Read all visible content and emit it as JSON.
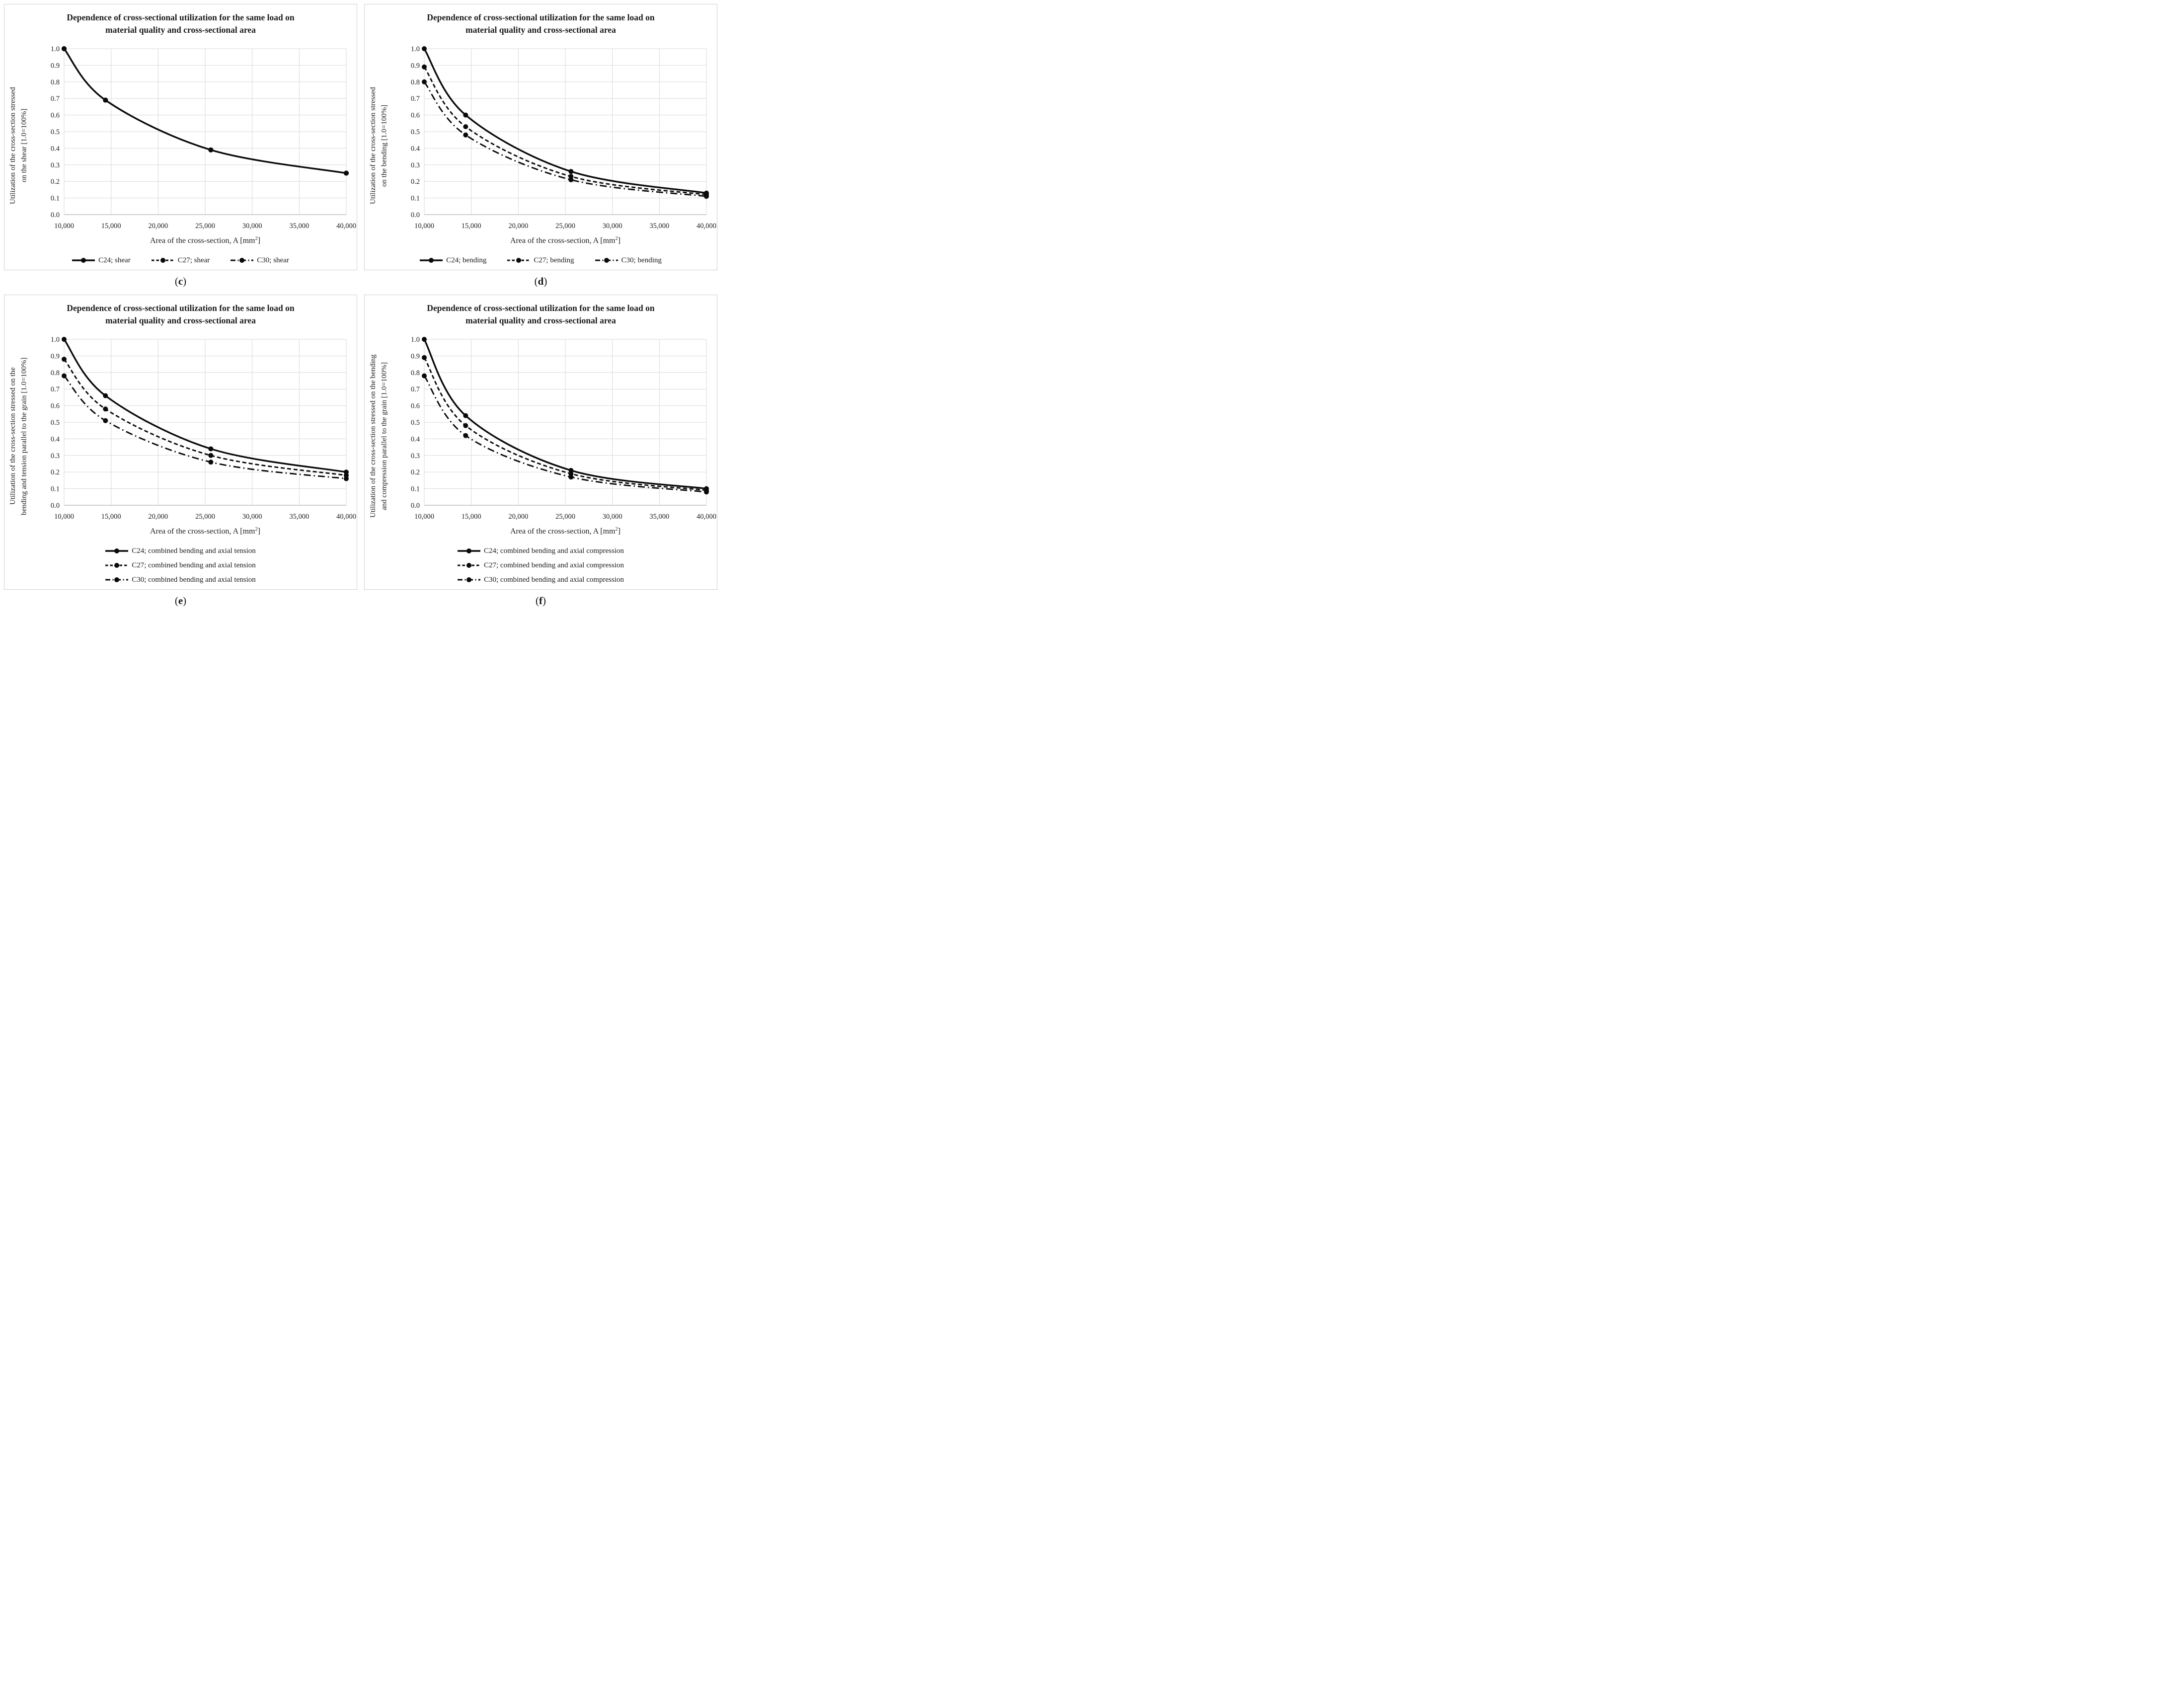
{
  "page": {
    "background": "#ffffff",
    "text_color": "#1a1a1a",
    "grid_color": "#d9d9d9",
    "line_color": "#0a0a0a"
  },
  "charts": [
    {
      "caption_letter": "c",
      "title_line1": "Dependence of cross-sectional utilization for the same load on",
      "title_line2": "material quality and cross-sectional area",
      "ylabel_line1": "Utilization of the cross-section stressed",
      "ylabel_line2": "on the shear [1.0=100%]",
      "legend_layout": "row",
      "chart_data": {
        "type": "line",
        "x": [
          10000,
          14400,
          25600,
          40000
        ],
        "xlim": [
          10000,
          40000
        ],
        "ylim": [
          0,
          1
        ],
        "grid": true,
        "legend_position": "bottom",
        "xlabel": "Area of the cross-section, A [mm²]",
        "xticks": [
          "10,000",
          "15,000",
          "20,000",
          "25,000",
          "30,000",
          "35,000",
          "40,000"
        ],
        "yticks": [
          "0.0",
          "0.1",
          "0.2",
          "0.3",
          "0.4",
          "0.5",
          "0.6",
          "0.7",
          "0.8",
          "0.9",
          "1.0"
        ],
        "series": [
          {
            "name": "C24; shear",
            "style": "solid",
            "values": [
              1.0,
              0.69,
              0.39,
              0.25
            ]
          },
          {
            "name": "C27; shear",
            "style": "dashed",
            "values": [
              1.0,
              0.69,
              0.39,
              0.25
            ]
          },
          {
            "name": "C30; shear",
            "style": "dashdot",
            "values": [
              1.0,
              0.69,
              0.39,
              0.25
            ]
          }
        ]
      }
    },
    {
      "caption_letter": "d",
      "title_line1": "Dependence of cross-sectional utilization for the same load on",
      "title_line2": "material quality and cross-sectional area",
      "ylabel_line1": "Utilization of the cross-section stressed",
      "ylabel_line2": "on the bending [1.0=100%]",
      "legend_layout": "row",
      "chart_data": {
        "type": "line",
        "x": [
          10000,
          14400,
          25600,
          40000
        ],
        "xlim": [
          10000,
          40000
        ],
        "ylim": [
          0,
          1
        ],
        "grid": true,
        "legend_position": "bottom",
        "xlabel": "Area of the cross-section, A [mm²]",
        "xticks": [
          "10,000",
          "15,000",
          "20,000",
          "25,000",
          "30,000",
          "35,000",
          "40,000"
        ],
        "yticks": [
          "0.0",
          "0.1",
          "0.2",
          "0.3",
          "0.4",
          "0.5",
          "0.6",
          "0.7",
          "0.8",
          "0.9",
          "1.0"
        ],
        "series": [
          {
            "name": "C24; bending",
            "style": "solid",
            "values": [
              1.0,
              0.6,
              0.26,
              0.13
            ]
          },
          {
            "name": "C27; bending",
            "style": "dashed",
            "values": [
              0.89,
              0.53,
              0.23,
              0.12
            ]
          },
          {
            "name": "C30; bending",
            "style": "dashdot",
            "values": [
              0.8,
              0.48,
              0.21,
              0.11
            ]
          }
        ]
      }
    },
    {
      "caption_letter": "e",
      "title_line1": "Dependence of cross-sectional utilization for the same load on",
      "title_line2": "material quality and cross-sectional area",
      "ylabel_line1": "Utilization of the cross-section stressed on the",
      "ylabel_line2": "bending and tension parallel to the grain [1.0=100%]",
      "legend_layout": "column",
      "chart_data": {
        "type": "line",
        "x": [
          10000,
          14400,
          25600,
          40000
        ],
        "xlim": [
          10000,
          40000
        ],
        "ylim": [
          0,
          1
        ],
        "grid": true,
        "legend_position": "bottom",
        "xlabel": "Area of the cross-section, A [mm²]",
        "xticks": [
          "10,000",
          "15,000",
          "20,000",
          "25,000",
          "30,000",
          "35,000",
          "40,000"
        ],
        "yticks": [
          "0.0",
          "0.1",
          "0.2",
          "0.3",
          "0.4",
          "0.5",
          "0.6",
          "0.7",
          "0.8",
          "0.9",
          "1.0"
        ],
        "series": [
          {
            "name": "C24; combined bending and axial tension",
            "style": "solid",
            "values": [
              1.0,
              0.66,
              0.34,
              0.2
            ]
          },
          {
            "name": "C27; combined bending and axial tension",
            "style": "dashed",
            "values": [
              0.88,
              0.58,
              0.3,
              0.18
            ]
          },
          {
            "name": "C30; combined bending and axial tension",
            "style": "dashdot",
            "values": [
              0.78,
              0.51,
              0.26,
              0.16
            ]
          }
        ]
      }
    },
    {
      "caption_letter": "f",
      "title_line1": "Dependence of cross-sectional utilization for the same load on",
      "title_line2": "material quality and cross-sectional area",
      "ylabel_line1": "Utilization of the cross-section stressed on the bending",
      "ylabel_line2": "and compression parallel to the grain [1.0=100%]",
      "legend_layout": "column",
      "chart_data": {
        "type": "line",
        "x": [
          10000,
          14400,
          25600,
          40000
        ],
        "xlim": [
          10000,
          40000
        ],
        "ylim": [
          0,
          1
        ],
        "grid": true,
        "legend_position": "bottom",
        "xlabel": "Area of the cross-section, A [mm²]",
        "xticks": [
          "10,000",
          "15,000",
          "20,000",
          "25,000",
          "30,000",
          "35,000",
          "40,000"
        ],
        "yticks": [
          "0.0",
          "0.1",
          "0.2",
          "0.3",
          "0.4",
          "0.5",
          "0.6",
          "0.7",
          "0.8",
          "0.9",
          "1.0"
        ],
        "series": [
          {
            "name": "C24; combined bending and axial compression",
            "style": "solid",
            "values": [
              1.0,
              0.54,
              0.21,
              0.1
            ]
          },
          {
            "name": "C27; combined bending and axial compression",
            "style": "dashed",
            "values": [
              0.89,
              0.48,
              0.19,
              0.09
            ]
          },
          {
            "name": "C30; combined bending and axial compression",
            "style": "dashdot",
            "values": [
              0.78,
              0.42,
              0.17,
              0.08
            ]
          }
        ]
      }
    }
  ]
}
